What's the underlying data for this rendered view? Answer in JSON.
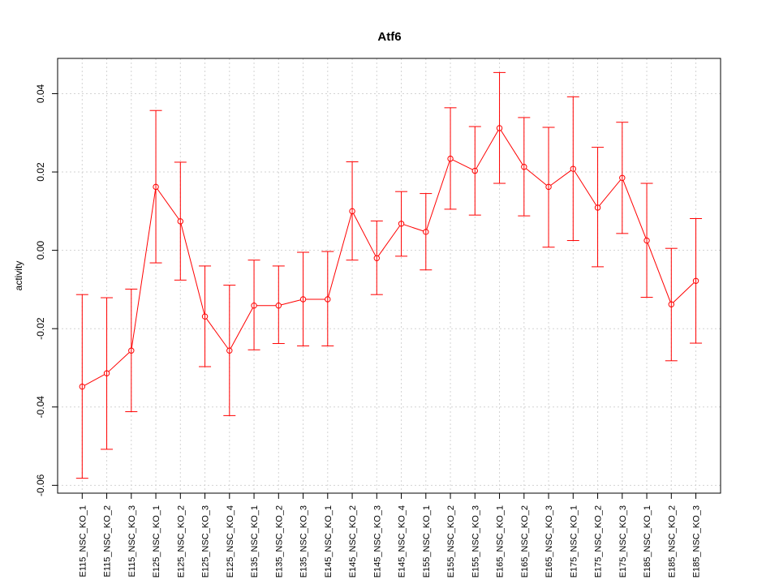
{
  "chart_data": {
    "type": "line",
    "title": "Atf6",
    "xlabel": "",
    "ylabel": "activity",
    "ylim": [
      -0.062,
      0.049
    ],
    "yticks": [
      -0.06,
      -0.04,
      -0.02,
      0.0,
      0.02,
      0.04
    ],
    "ytick_labels": [
      "-0.06",
      "-0.04",
      "-0.02",
      "0.00",
      "0.02",
      "0.04"
    ],
    "grid": true,
    "color": "#ff0000",
    "categories": [
      "E115_NSC_KO_1",
      "E115_NSC_KO_2",
      "E115_NSC_KO_3",
      "E125_NSC_KO_1",
      "E125_NSC_KO_2",
      "E125_NSC_KO_3",
      "E125_NSC_KO_4",
      "E135_NSC_KO_1",
      "E135_NSC_KO_2",
      "E135_NSC_KO_3",
      "E145_NSC_KO_1",
      "E145_NSC_KO_2",
      "E145_NSC_KO_3",
      "E145_NSC_KO_4",
      "E155_NSC_KO_1",
      "E155_NSC_KO_2",
      "E155_NSC_KO_3",
      "E165_NSC_KO_1",
      "E165_NSC_KO_2",
      "E165_NSC_KO_3",
      "E175_NSC_KO_1",
      "E175_NSC_KO_2",
      "E175_NSC_KO_3",
      "E185_NSC_KO_1",
      "E185_NSC_KO_2",
      "E185_NSC_KO_3"
    ],
    "values": [
      -0.0348,
      -0.0314,
      -0.0256,
      0.0162,
      0.0074,
      -0.0169,
      -0.0256,
      -0.0141,
      -0.0141,
      -0.0125,
      -0.0125,
      0.01,
      -0.002,
      0.0068,
      0.0047,
      0.0234,
      0.0203,
      0.0312,
      0.0213,
      0.0162,
      0.0208,
      0.0109,
      0.0185,
      0.0025,
      -0.0138,
      -0.0078
    ],
    "lower": [
      -0.0582,
      -0.0508,
      -0.0412,
      -0.0032,
      -0.0076,
      -0.0297,
      -0.0422,
      -0.0254,
      -0.0238,
      -0.0244,
      -0.0244,
      -0.0025,
      -0.0113,
      -0.0015,
      -0.005,
      0.0105,
      0.009,
      0.0171,
      0.0088,
      0.0008,
      0.0025,
      -0.0042,
      0.0043,
      -0.012,
      -0.0282,
      -0.0237
    ],
    "upper": [
      -0.0113,
      -0.0121,
      -0.0099,
      0.0357,
      0.0225,
      -0.004,
      -0.0089,
      -0.0025,
      -0.004,
      -0.0005,
      -0.0003,
      0.0226,
      0.0075,
      0.015,
      0.0145,
      0.0364,
      0.0316,
      0.0454,
      0.0339,
      0.0314,
      0.0392,
      0.0263,
      0.0327,
      0.0171,
      0.0005,
      0.0081
    ]
  }
}
